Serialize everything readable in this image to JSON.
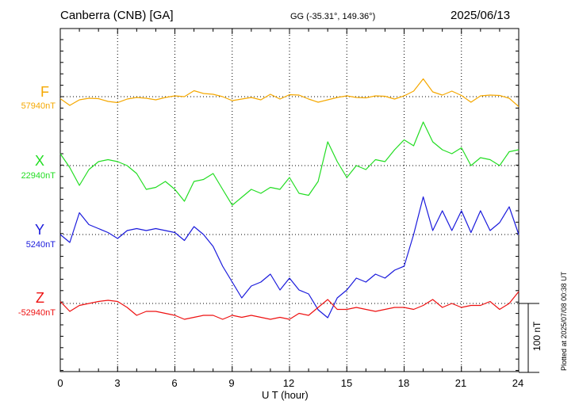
{
  "header": {
    "station": "Canberra (CNB)  [GA]",
    "coords": "GG (-35.31°, 149.36°)",
    "date": "2025/06/13"
  },
  "footer": {
    "plotted": "Plotted at 2025/07/08 00:38 UT"
  },
  "scale_bar": {
    "label": "100 nT",
    "value_nT": 100
  },
  "chart_data": {
    "type": "line",
    "xlabel": "U T (hour)",
    "xlim": [
      0,
      24
    ],
    "x_ticks": [
      "0",
      "3",
      "6",
      "9",
      "12",
      "15",
      "18",
      "21",
      "24"
    ],
    "grid": true,
    "series": [
      {
        "name": "F",
        "baseline_label": "57940nT",
        "baseline_nT": 57940,
        "color": "#f5a800",
        "x": [
          0,
          0.5,
          1,
          1.5,
          2,
          2.5,
          3,
          3.5,
          4,
          4.5,
          5,
          5.5,
          6,
          6.5,
          7,
          7.5,
          8,
          8.5,
          9,
          9.5,
          10,
          10.5,
          11,
          11.5,
          12,
          12.5,
          13,
          13.5,
          14,
          14.5,
          15,
          15.5,
          16,
          16.5,
          17,
          17.5,
          18,
          18.5,
          19,
          19.5,
          20,
          20.5,
          21,
          21.5,
          22,
          22.5,
          23,
          23.5,
          24
        ],
        "values": [
          -5,
          -22,
          -8,
          -4,
          -5,
          -12,
          -15,
          -6,
          -2,
          -4,
          -8,
          -2,
          2,
          0,
          15,
          8,
          6,
          0,
          -10,
          -6,
          -2,
          -8,
          6,
          -6,
          5,
          4,
          -6,
          -14,
          -8,
          -2,
          2,
          -2,
          -3,
          2,
          1,
          -6,
          2,
          14,
          45,
          12,
          4,
          14,
          3,
          -14,
          2,
          4,
          3,
          -4,
          -25
        ]
      },
      {
        "name": "X",
        "baseline_label": "22940nT",
        "baseline_nT": 22940,
        "color": "#22dd22",
        "x": [
          0,
          0.5,
          1,
          1.5,
          2,
          2.5,
          3,
          3.5,
          4,
          4.5,
          5,
          5.5,
          6,
          6.5,
          7,
          7.5,
          8,
          8.5,
          9,
          9.5,
          10,
          10.5,
          11,
          11.5,
          12,
          12.5,
          13,
          13.5,
          14,
          14.5,
          15,
          15.5,
          16,
          16.5,
          17,
          17.5,
          18,
          18.5,
          19,
          19.5,
          20,
          20.5,
          21,
          21.5,
          22,
          22.5,
          23,
          23.5,
          24
        ],
        "values": [
          30,
          -5,
          -50,
          -10,
          10,
          15,
          10,
          0,
          -20,
          -60,
          -55,
          -40,
          -60,
          -90,
          -40,
          -35,
          -20,
          -60,
          -100,
          -80,
          -60,
          -70,
          -55,
          -60,
          -30,
          -70,
          -75,
          -40,
          60,
          10,
          -30,
          0,
          -10,
          15,
          10,
          40,
          65,
          50,
          110,
          60,
          40,
          30,
          45,
          0,
          20,
          15,
          0,
          35,
          40
        ]
      },
      {
        "name": "Y",
        "baseline_label": "5240nT",
        "baseline_nT": 5240,
        "color": "#1a1adc",
        "x": [
          0,
          0.5,
          1,
          1.5,
          2,
          2.5,
          3,
          3.5,
          4,
          4.5,
          5,
          5.5,
          6,
          6.5,
          7,
          7.5,
          8,
          8.5,
          9,
          9.5,
          10,
          10.5,
          11,
          11.5,
          12,
          12.5,
          13,
          13.5,
          14,
          14.5,
          15,
          15.5,
          16,
          16.5,
          17,
          17.5,
          18,
          18.5,
          19,
          19.5,
          20,
          20.5,
          21,
          21.5,
          22,
          22.5,
          23,
          23.5,
          24
        ],
        "values": [
          0,
          -20,
          55,
          25,
          15,
          5,
          -10,
          10,
          15,
          10,
          15,
          10,
          5,
          -15,
          20,
          0,
          -30,
          -80,
          -120,
          -160,
          -130,
          -120,
          -100,
          -140,
          -110,
          -140,
          -150,
          -190,
          -210,
          -160,
          -140,
          -110,
          -120,
          -100,
          -110,
          -90,
          -80,
          0,
          95,
          10,
          60,
          10,
          60,
          5,
          60,
          10,
          30,
          70,
          0
        ]
      },
      {
        "name": "Z",
        "baseline_label": "-52940nT",
        "baseline_nT": -52940,
        "color": "#ee1111",
        "x": [
          0,
          0.5,
          1,
          1.5,
          2,
          2.5,
          3,
          3.5,
          4,
          4.5,
          5,
          5.5,
          6,
          6.5,
          7,
          7.5,
          8,
          8.5,
          9,
          9.5,
          10,
          10.5,
          11,
          11.5,
          12,
          12.5,
          13,
          13.5,
          14,
          14.5,
          15,
          15.5,
          16,
          16.5,
          17,
          17.5,
          18,
          18.5,
          19,
          19.5,
          20,
          20.5,
          21,
          21.5,
          22,
          22.5,
          23,
          23.5,
          24
        ],
        "values": [
          5,
          -20,
          -5,
          0,
          5,
          8,
          5,
          -10,
          -30,
          -20,
          -20,
          -25,
          -30,
          -40,
          -35,
          -30,
          -30,
          -40,
          -30,
          -35,
          -30,
          -35,
          -40,
          -35,
          -40,
          -25,
          -30,
          -10,
          10,
          -15,
          -15,
          -10,
          -15,
          -20,
          -15,
          -10,
          -10,
          -15,
          -5,
          10,
          -10,
          0,
          -10,
          -5,
          -5,
          5,
          -15,
          0,
          30
        ]
      }
    ]
  }
}
